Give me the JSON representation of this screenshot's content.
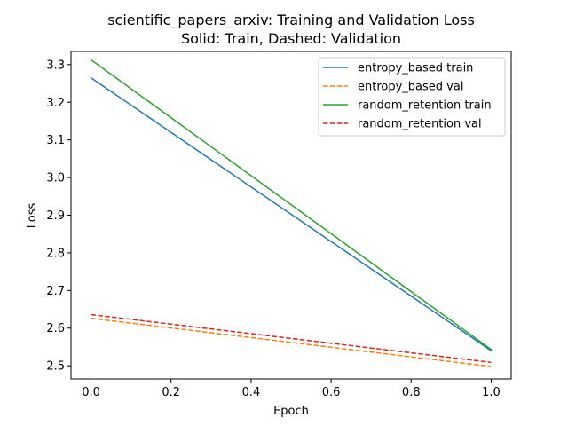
{
  "chart_data": {
    "type": "line",
    "title": "scientific_papers_arxiv: Training and Validation Loss",
    "subtitle": "Solid: Train, Dashed: Validation",
    "xlabel": "Epoch",
    "ylabel": "Loss",
    "xlim": [
      -0.05,
      1.05
    ],
    "ylim": [
      2.465,
      3.335
    ],
    "xticks": [
      0.0,
      0.2,
      0.4,
      0.6,
      0.8,
      1.0
    ],
    "xtick_labels": [
      "0.0",
      "0.2",
      "0.4",
      "0.6",
      "0.8",
      "1.0"
    ],
    "yticks": [
      2.5,
      2.6,
      2.7,
      2.8,
      2.9,
      3.0,
      3.1,
      3.2,
      3.3
    ],
    "ytick_labels": [
      "2.5",
      "2.6",
      "2.7",
      "2.8",
      "2.9",
      "3.0",
      "3.1",
      "3.2",
      "3.3"
    ],
    "grid": false,
    "legend_position": "top-right",
    "x": [
      0,
      1
    ],
    "series": [
      {
        "name": "entropy_based train",
        "values": [
          3.265,
          2.54
        ],
        "color": "#1f77b4",
        "dashed": false
      },
      {
        "name": "entropy_based val",
        "values": [
          2.626,
          2.498
        ],
        "color": "#ff7f0e",
        "dashed": true
      },
      {
        "name": "random_retention train",
        "values": [
          3.313,
          2.543
        ],
        "color": "#2ca02c",
        "dashed": false
      },
      {
        "name": "random_retention val",
        "values": [
          2.636,
          2.509
        ],
        "color": "#d62728",
        "dashed": true
      }
    ]
  }
}
